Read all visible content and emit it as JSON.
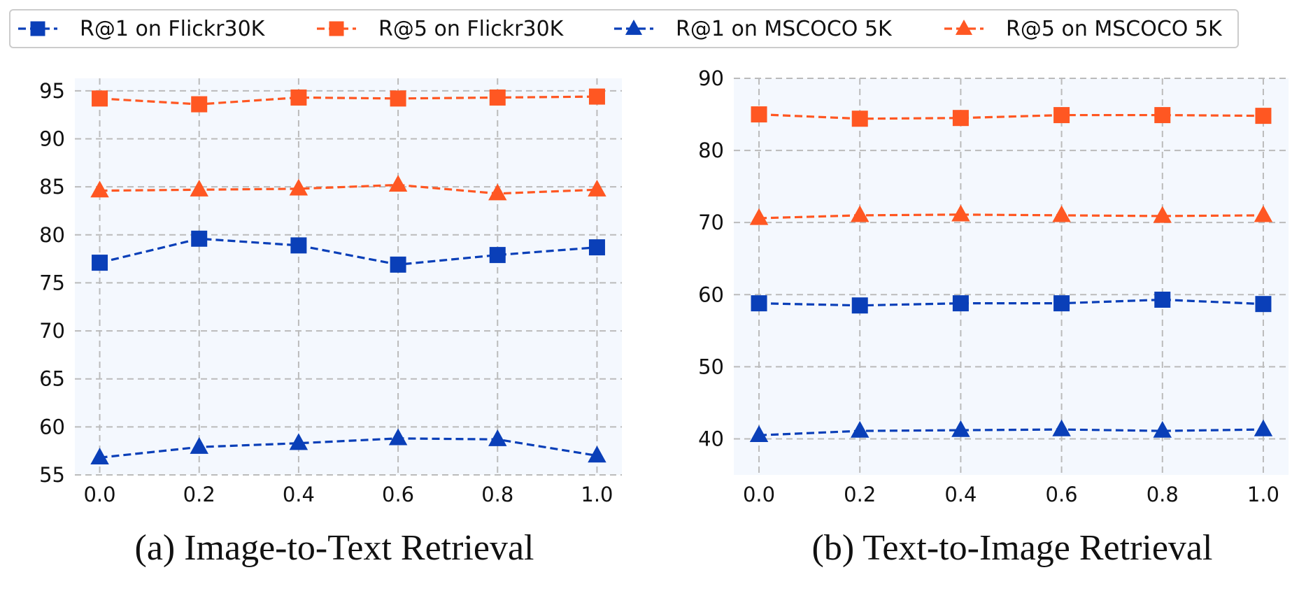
{
  "legend": {
    "items": [
      {
        "label": "R@1 on Flickr30K",
        "series": 0
      },
      {
        "label": "R@5 on Flickr30K",
        "series": 1
      },
      {
        "label": "R@1 on MSCOCO 5K",
        "series": 2
      },
      {
        "label": "R@5 on MSCOCO 5K",
        "series": 3
      }
    ]
  },
  "series_styles": [
    {
      "color": "#0a3fb8",
      "marker": "square"
    },
    {
      "color": "#ff5722",
      "marker": "square"
    },
    {
      "color": "#0a3fb8",
      "marker": "triangle"
    },
    {
      "color": "#ff5722",
      "marker": "triangle"
    }
  ],
  "colors": {
    "plot_bg": "#f4f8fe",
    "grid": "#bbbbbb"
  },
  "chart_data": [
    {
      "type": "line",
      "caption": "(a) Image-to-Text Retrieval",
      "x": [
        0.0,
        0.2,
        0.4,
        0.6,
        0.8,
        1.0
      ],
      "x_tick_labels": [
        "0.0",
        "0.2",
        "0.4",
        "0.6",
        "0.8",
        "1.0"
      ],
      "xlim": [
        -0.05,
        1.05
      ],
      "ylim": [
        55,
        96.3
      ],
      "y_ticks": [
        55,
        60,
        65,
        70,
        75,
        80,
        85,
        90,
        95
      ],
      "grid": true,
      "legend_position": "top, shared",
      "series": [
        {
          "name": "R@1 on Flickr30K",
          "values": [
            77.1,
            79.6,
            78.9,
            76.9,
            77.9,
            78.7
          ]
        },
        {
          "name": "R@5 on Flickr30K",
          "values": [
            94.2,
            93.6,
            94.3,
            94.2,
            94.3,
            94.4
          ]
        },
        {
          "name": "R@1 on MSCOCO 5K",
          "values": [
            56.8,
            57.9,
            58.3,
            58.8,
            58.7,
            57.0
          ]
        },
        {
          "name": "R@5 on MSCOCO 5K",
          "values": [
            84.6,
            84.7,
            84.8,
            85.2,
            84.3,
            84.7
          ]
        }
      ]
    },
    {
      "type": "line",
      "caption": "(b) Text-to-Image Retrieval",
      "x": [
        0.0,
        0.2,
        0.4,
        0.6,
        0.8,
        1.0
      ],
      "x_tick_labels": [
        "0.0",
        "0.2",
        "0.4",
        "0.6",
        "0.8",
        "1.0"
      ],
      "xlim": [
        -0.05,
        1.05
      ],
      "ylim": [
        35,
        90
      ],
      "y_ticks": [
        40,
        50,
        60,
        70,
        80,
        90
      ],
      "grid": true,
      "legend_position": "top, shared",
      "series": [
        {
          "name": "R@1 on Flickr30K",
          "values": [
            58.8,
            58.5,
            58.8,
            58.8,
            59.3,
            58.7
          ]
        },
        {
          "name": "R@5 on Flickr30K",
          "values": [
            85.0,
            84.4,
            84.5,
            84.9,
            84.9,
            84.8
          ]
        },
        {
          "name": "R@1 on MSCOCO 5K",
          "values": [
            40.5,
            41.1,
            41.2,
            41.3,
            41.1,
            41.3
          ]
        },
        {
          "name": "R@5 on MSCOCO 5K",
          "values": [
            70.6,
            71.0,
            71.1,
            71.0,
            70.9,
            71.0
          ]
        }
      ]
    }
  ]
}
